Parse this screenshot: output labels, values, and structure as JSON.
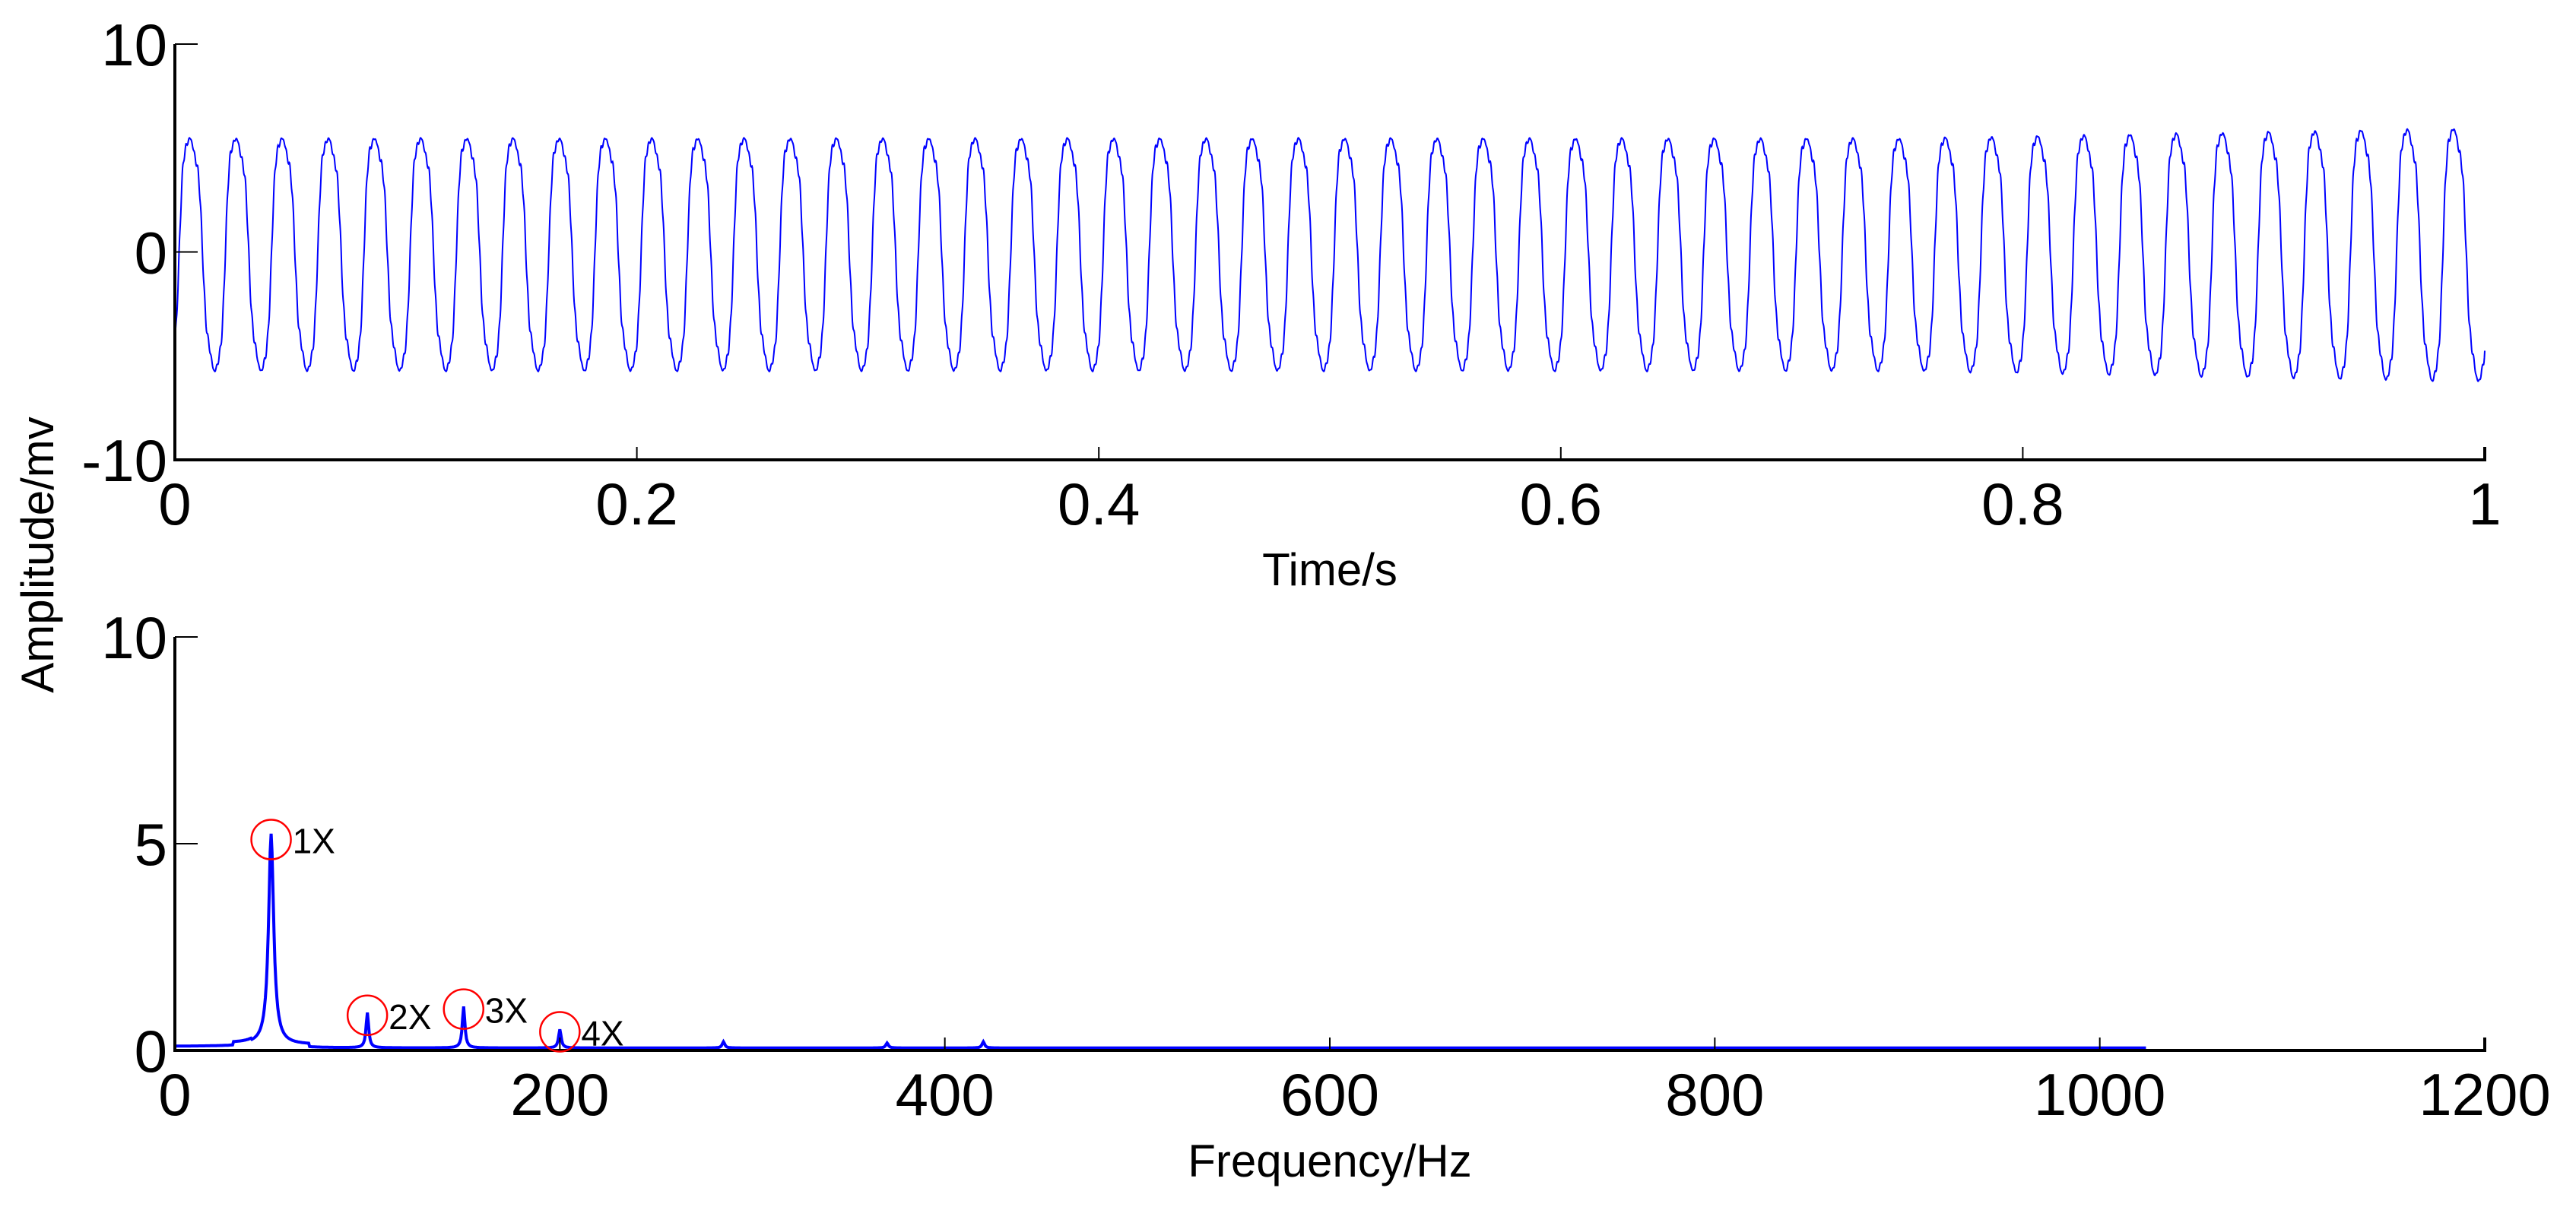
{
  "figure": {
    "ylabel": "Amplitude/mv",
    "line_color": "#0000ff",
    "marker_color": "#ff0000"
  },
  "chart_data": [
    {
      "type": "line",
      "title": "",
      "xlabel": "Time/s",
      "ylabel": "Amplitude/mv",
      "xlim": [
        0,
        1
      ],
      "ylim": [
        -10,
        10
      ],
      "xticks": [
        "0",
        "0.2",
        "0.4",
        "0.6",
        "0.8",
        "1"
      ],
      "yticks": [
        "-10",
        "0",
        "10"
      ],
      "grid": false,
      "signal": {
        "description": "Periodic vibration waveform, ~50 Hz fundamental with harmonics",
        "frequency_hz": 50,
        "cycles": 50,
        "peak_max_approx": 6.2,
        "trough_min_approx": -5.8,
        "peak_growth_near_end": 6.8
      }
    },
    {
      "type": "line",
      "title": "",
      "xlabel": "Frequency/Hz",
      "ylabel": "Amplitude/mv",
      "xlim": [
        0,
        1200
      ],
      "ylim": [
        0,
        10
      ],
      "xticks": [
        "0",
        "200",
        "400",
        "600",
        "800",
        "1000",
        "1200"
      ],
      "yticks": [
        "0",
        "5",
        "10"
      ],
      "grid": false,
      "x_data_end": 1024,
      "baseline": 0.1,
      "peaks": [
        {
          "label": "1X",
          "freq": 50,
          "amplitude": 5.1
        },
        {
          "label": "2X",
          "freq": 100,
          "amplitude": 0.85
        },
        {
          "label": "3X",
          "freq": 150,
          "amplitude": 1.0
        },
        {
          "label": "4X",
          "freq": 200,
          "amplitude": 0.45
        }
      ],
      "minor_peaks": [
        {
          "freq": 285,
          "amplitude": 0.15
        },
        {
          "freq": 370,
          "amplitude": 0.12
        },
        {
          "freq": 420,
          "amplitude": 0.15
        }
      ]
    }
  ]
}
